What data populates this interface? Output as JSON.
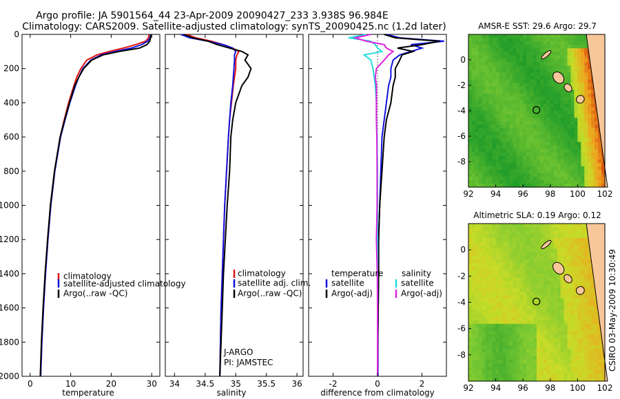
{
  "title": {
    "line1": "Argo profile: JA 5901564_44 23-Apr-2009 20090427_233 3.938S 96.984E",
    "line2": "Climatology: CARS2009. Satellite-adjusted climatology: synTS_20090425.nc (1.2d later)"
  },
  "colors": {
    "climatology": "#dd1111",
    "satellite": "#1111dd",
    "argo": "#000000",
    "sat_salt": "#22dddd",
    "argo_salt": "#dd22dd",
    "sea_mid": "#7fc832",
    "land": "#f7c79a"
  },
  "chart_data": [
    {
      "type": "line",
      "xlabel": "temperature",
      "xlim": [
        -2,
        32
      ],
      "ylim": [
        2000,
        0
      ],
      "xticks": [
        "0",
        "10",
        "20",
        "30"
      ],
      "yticks": [
        "0",
        "200",
        "400",
        "600",
        "800",
        "1000",
        "1200",
        "1400",
        "1600",
        "1800",
        "2000"
      ],
      "depth": [
        0,
        20,
        40,
        60,
        80,
        100,
        120,
        150,
        200,
        250,
        300,
        400,
        500,
        600,
        800,
        1000,
        1200,
        1400,
        1600,
        1800,
        2000
      ],
      "series": [
        {
          "name": "climatology",
          "values": [
            29.3,
            29.2,
            28.5,
            26.0,
            23.0,
            19.5,
            16.5,
            14.0,
            12.5,
            11.5,
            10.8,
            9.5,
            8.4,
            7.4,
            6.0,
            5.0,
            4.3,
            3.7,
            3.2,
            2.8,
            2.5
          ]
        },
        {
          "name": "satellite-adjusted climatology",
          "values": [
            29.7,
            29.6,
            29.0,
            27.5,
            25.0,
            21.0,
            17.5,
            15.0,
            13.0,
            12.0,
            11.2,
            9.8,
            8.6,
            7.5,
            6.1,
            5.1,
            4.4,
            3.8,
            3.3,
            2.9,
            2.6
          ]
        },
        {
          "name": "Argo(..raw -QC)",
          "values": [
            29.8,
            29.7,
            29.5,
            28.8,
            27.0,
            22.0,
            18.0,
            15.2,
            13.2,
            12.0,
            11.0,
            9.7,
            8.5,
            7.4,
            6.0,
            5.0,
            4.3,
            3.7,
            3.2,
            2.8,
            2.5
          ]
        }
      ],
      "legend": [
        "climatology",
        "satellite-adjusted climatology",
        "Argo(..raw -QC)"
      ]
    },
    {
      "type": "line",
      "xlabel": "salinity",
      "xlim": [
        33.85,
        36.1
      ],
      "ylim": [
        2000,
        0
      ],
      "xticks": [
        "34",
        "34.5",
        "35",
        "35.5",
        "36"
      ],
      "depth": [
        0,
        20,
        40,
        60,
        80,
        100,
        120,
        150,
        200,
        250,
        300,
        400,
        500,
        600,
        800,
        1000,
        1200,
        1400,
        1600,
        1800,
        2000
      ],
      "series": [
        {
          "name": "climatology",
          "values": [
            34.2,
            34.35,
            34.6,
            34.8,
            34.95,
            35.05,
            35.02,
            35.0,
            35.0,
            34.98,
            34.96,
            34.93,
            34.9,
            34.88,
            34.85,
            34.82,
            34.8,
            34.78,
            34.76,
            34.75,
            34.74
          ]
        },
        {
          "name": "satellite adj. clim.",
          "values": [
            34.1,
            34.25,
            34.55,
            34.8,
            34.95,
            35.0,
            34.98,
            34.98,
            34.97,
            34.96,
            34.95,
            34.92,
            34.9,
            34.88,
            34.85,
            34.82,
            34.8,
            34.78,
            34.76,
            34.75,
            34.74
          ]
        },
        {
          "name": "Argo(..raw -QC)",
          "values": [
            34.15,
            34.3,
            34.55,
            34.7,
            34.9,
            35.1,
            35.2,
            35.15,
            35.25,
            35.2,
            35.1,
            35.0,
            34.95,
            34.92,
            34.9,
            34.86,
            34.83,
            34.8,
            34.78,
            34.76,
            34.74
          ]
        }
      ],
      "legend": [
        "climatology",
        "satellite adj. clim.",
        "Argo(..raw -QC)"
      ],
      "annotations": [
        "J-ARGO",
        "PI: JAMSTEC"
      ]
    },
    {
      "type": "line",
      "xlabel": "difference from climatology",
      "xlim": [
        -3.1,
        3.1
      ],
      "ylim": [
        2000,
        0
      ],
      "xticks": [
        "-2",
        "0",
        "2"
      ],
      "depth": [
        0,
        20,
        40,
        60,
        80,
        100,
        120,
        150,
        200,
        250,
        300,
        400,
        500,
        600,
        800,
        1000,
        1200,
        1400,
        1600,
        1800,
        2000
      ],
      "series": [
        {
          "name": "temperature satellite",
          "values": [
            0.4,
            1.0,
            3.0,
            1.5,
            2.0,
            1.5,
            1.0,
            0.7,
            0.6,
            0.6,
            0.5,
            0.4,
            0.3,
            0.2,
            0.15,
            0.1,
            0.05,
            0.05,
            0.03,
            0.02,
            0.02
          ]
        },
        {
          "name": "temperature Argo(-adj)",
          "values": [
            0.3,
            0.8,
            2.8,
            2.0,
            0.9,
            1.6,
            1.1,
            1.0,
            0.8,
            0.8,
            0.7,
            0.6,
            0.4,
            0.3,
            0.2,
            0.1,
            0.05,
            0.05,
            0.03,
            0.01,
            0.0
          ]
        },
        {
          "name": "salinity satellite",
          "values": [
            -0.5,
            -1.3,
            -0.3,
            -0.1,
            0.0,
            0.2,
            -0.6,
            -0.3,
            -0.2,
            -0.15,
            -0.1,
            -0.05,
            -0.05,
            -0.02,
            0.0,
            0.0,
            0.0,
            0.0,
            0.0,
            0.0,
            0.0
          ]
        },
        {
          "name": "salinity Argo(-adj)",
          "values": [
            -0.3,
            -1.0,
            -0.5,
            0.3,
            0.4,
            0.7,
            0.5,
            0.3,
            -0.05,
            -0.1,
            -0.05,
            -0.05,
            -0.05,
            -0.03,
            -0.02,
            -0.02,
            -0.05,
            -0.01,
            0.0,
            0.0,
            0.0
          ]
        }
      ],
      "legend": {
        "temperature_header": "temperature",
        "salinity_header": "salinity",
        "temp_items": [
          "satellite",
          "Argo(-adj)"
        ],
        "salt_items": [
          "satellite",
          "Argo(-adj)"
        ]
      }
    },
    {
      "type": "heatmap",
      "title": "AMSR-E SST: 29.6 Argo: 29.7",
      "xlim": [
        92,
        102
      ],
      "ylim": [
        -10,
        2
      ],
      "xticks": [
        "92",
        "94",
        "96",
        "98",
        "100",
        "102"
      ],
      "yticks": [
        "0",
        "-2",
        "-4",
        "-6",
        "-8"
      ],
      "argo_position": [
        96.984,
        -3.938
      ]
    },
    {
      "type": "heatmap",
      "title": "Altimetric SLA: 0.19 Argo: 0.12",
      "xlim": [
        92,
        102
      ],
      "ylim": [
        -10,
        2
      ],
      "xticks": [
        "92",
        "94",
        "96",
        "98",
        "100",
        "102"
      ],
      "yticks": [
        "0",
        "-2",
        "-4",
        "-6",
        "-8"
      ],
      "argo_position": [
        96.984,
        -3.938
      ]
    }
  ],
  "credit": "CSIRO 03-May-2009 10:30:49"
}
